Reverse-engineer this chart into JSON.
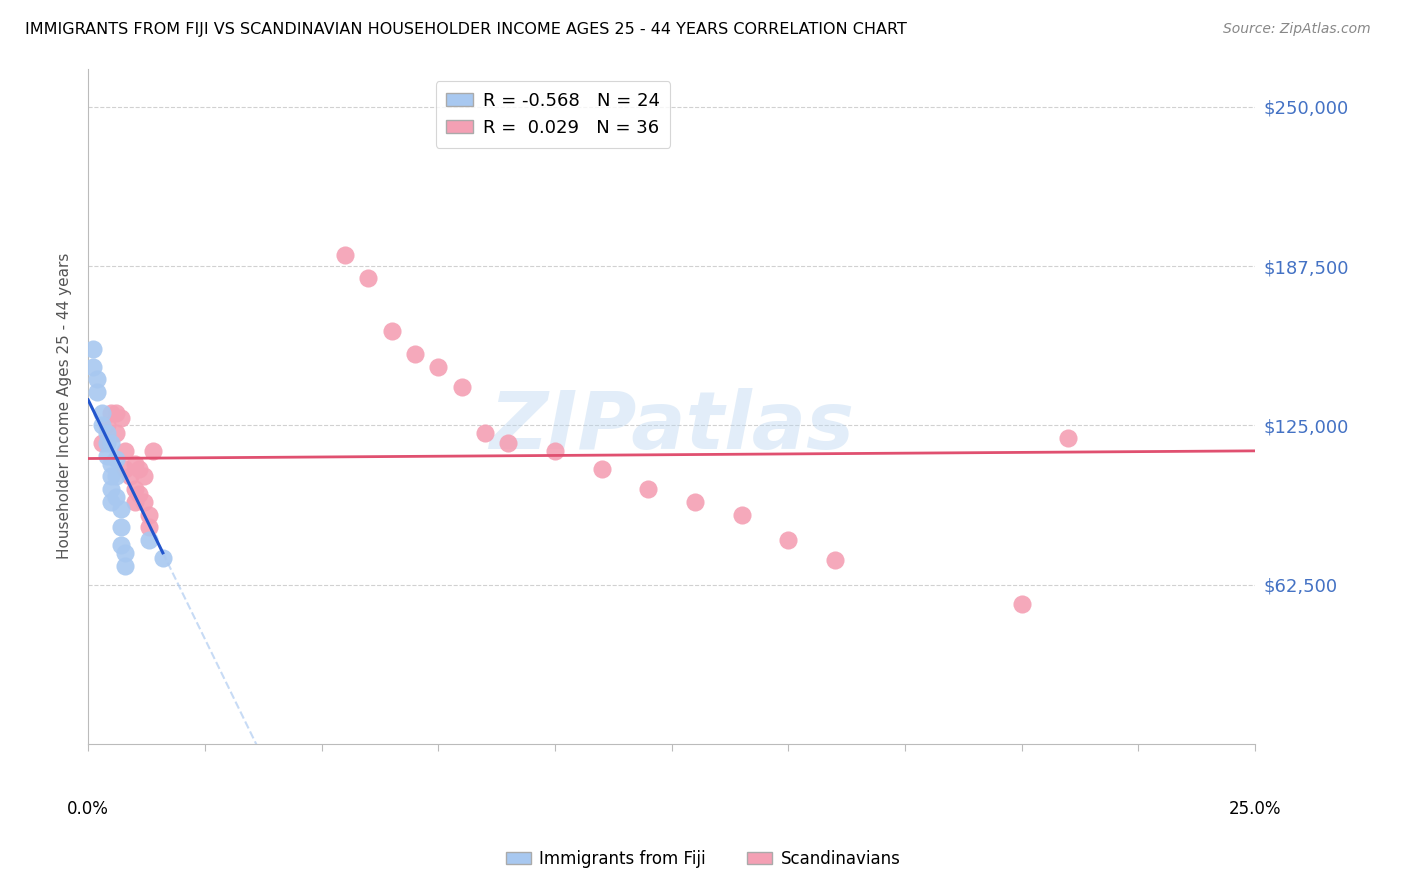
{
  "title": "IMMIGRANTS FROM FIJI VS SCANDINAVIAN HOUSEHOLDER INCOME AGES 25 - 44 YEARS CORRELATION CHART",
  "source": "Source: ZipAtlas.com",
  "ylabel": "Householder Income Ages 25 - 44 years",
  "ytick_values": [
    62500,
    125000,
    187500,
    250000
  ],
  "ytick_labels": [
    "$62,500",
    "$125,000",
    "$187,500",
    "$250,000"
  ],
  "ylim": [
    0,
    265000
  ],
  "xlim": [
    0.0,
    0.25
  ],
  "fiji_R": "-0.568",
  "fiji_N": "24",
  "scand_R": "0.029",
  "scand_N": "36",
  "fiji_color": "#a8c8f0",
  "scand_color": "#f4a0b4",
  "fiji_line_color": "#2255cc",
  "fiji_dash_color": "#aac8f0",
  "scand_line_color": "#e05070",
  "fiji_x": [
    0.001,
    0.001,
    0.002,
    0.002,
    0.003,
    0.003,
    0.004,
    0.004,
    0.004,
    0.005,
    0.005,
    0.005,
    0.005,
    0.005,
    0.006,
    0.006,
    0.006,
    0.007,
    0.007,
    0.007,
    0.008,
    0.008,
    0.013,
    0.016
  ],
  "fiji_y": [
    155000,
    148000,
    143000,
    138000,
    130000,
    125000,
    122000,
    118000,
    113000,
    118000,
    110000,
    105000,
    100000,
    95000,
    112000,
    105000,
    97000,
    92000,
    85000,
    78000,
    75000,
    70000,
    80000,
    73000
  ],
  "scand_x": [
    0.003,
    0.004,
    0.005,
    0.006,
    0.006,
    0.007,
    0.008,
    0.008,
    0.009,
    0.01,
    0.01,
    0.01,
    0.011,
    0.011,
    0.012,
    0.012,
    0.013,
    0.013,
    0.014,
    0.055,
    0.06,
    0.065,
    0.07,
    0.075,
    0.08,
    0.085,
    0.09,
    0.1,
    0.11,
    0.12,
    0.13,
    0.14,
    0.15,
    0.16,
    0.2,
    0.21
  ],
  "scand_y": [
    118000,
    125000,
    130000,
    130000,
    122000,
    128000,
    115000,
    108000,
    105000,
    110000,
    100000,
    95000,
    108000,
    98000,
    105000,
    95000,
    90000,
    85000,
    115000,
    192000,
    183000,
    162000,
    153000,
    148000,
    140000,
    122000,
    118000,
    115000,
    108000,
    100000,
    95000,
    90000,
    80000,
    72000,
    55000,
    120000
  ],
  "watermark_text": "ZIPatlas",
  "background_color": "#ffffff",
  "grid_color": "#cccccc",
  "label_color": "#4472C4",
  "title_color": "#000000",
  "source_color": "#888888"
}
